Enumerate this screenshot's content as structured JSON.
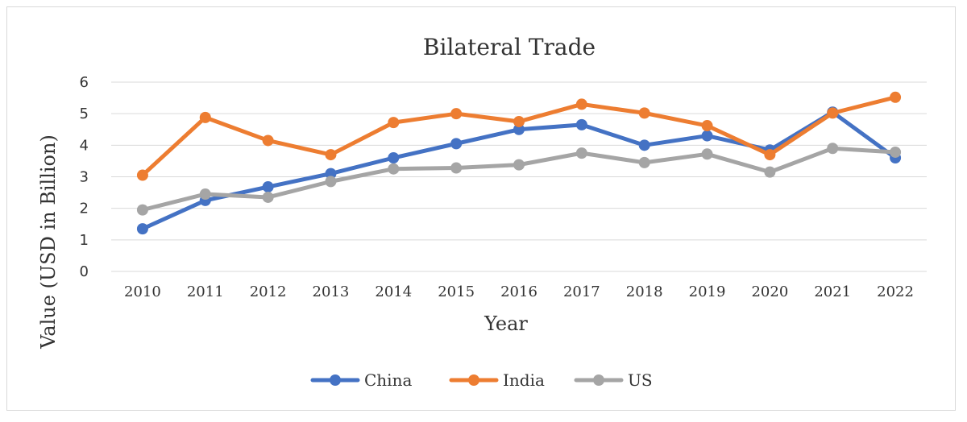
{
  "chart_data": {
    "type": "line",
    "title": "Bilateral Trade",
    "xlabel": "Year",
    "ylabel": "Value (USD in Billion)",
    "ylim": [
      0,
      6
    ],
    "yticks": [
      "0",
      "1",
      "2",
      "3",
      "4",
      "5",
      "6"
    ],
    "grid": true,
    "legend": "bottom",
    "categories": [
      "2010",
      "2011",
      "2012",
      "2013",
      "2014",
      "2015",
      "2016",
      "2017",
      "2018",
      "2019",
      "2020",
      "2021",
      "2022"
    ],
    "series": [
      {
        "name": "China",
        "color": "#4472C4",
        "values": [
          1.35,
          2.25,
          2.68,
          3.1,
          3.6,
          4.05,
          4.5,
          4.65,
          4.0,
          4.3,
          3.85,
          5.05,
          3.6
        ]
      },
      {
        "name": "India",
        "color": "#ED7D31",
        "values": [
          3.05,
          4.88,
          4.15,
          3.7,
          4.72,
          5.0,
          4.75,
          5.3,
          5.02,
          4.62,
          3.7,
          5.02,
          5.52
        ]
      },
      {
        "name": "US",
        "color": "#A5A5A5",
        "values": [
          1.95,
          2.45,
          2.35,
          2.85,
          3.25,
          3.28,
          3.38,
          3.75,
          3.45,
          3.72,
          3.15,
          3.9,
          3.78
        ]
      }
    ]
  }
}
